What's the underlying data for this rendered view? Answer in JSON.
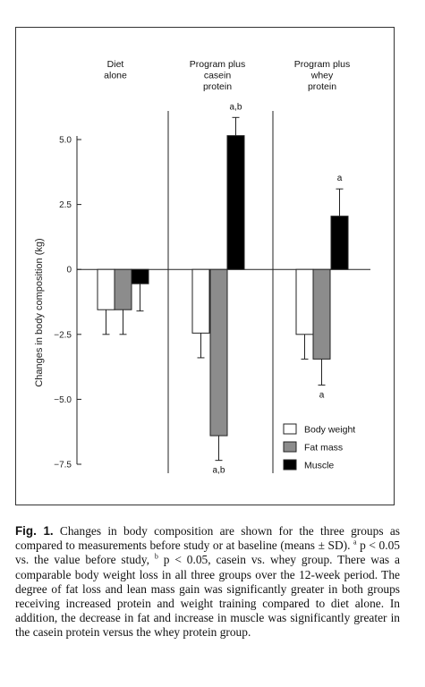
{
  "chart_data": {
    "type": "bar",
    "title": "",
    "ylabel": "Changes in body composition (kg)",
    "xlabel": "",
    "ylim": [
      -7.5,
      5.0
    ],
    "yticks": [
      5.0,
      2.5,
      0,
      -2.5,
      -5.0,
      -7.5
    ],
    "ytick_labels": [
      "5.0",
      "2.5",
      "0",
      "−2.5",
      "−5.0",
      "−7.5"
    ],
    "grid": false,
    "legend_position": "bottom-right",
    "groups": [
      {
        "label_lines": [
          "Diet",
          "alone"
        ]
      },
      {
        "label_lines": [
          "Program plus",
          "casein",
          "protein"
        ]
      },
      {
        "label_lines": [
          "Program plus",
          "whey",
          "protein"
        ]
      }
    ],
    "series": [
      {
        "name": "Body weight",
        "color": "#ffffff",
        "values": [
          -1.55,
          -2.45,
          -2.5
        ],
        "errors": [
          0.95,
          0.95,
          0.95
        ],
        "annotations": [
          "",
          "",
          ""
        ]
      },
      {
        "name": "Fat mass",
        "color": "#8c8c8c",
        "values": [
          -1.55,
          -6.4,
          -3.45
        ],
        "errors": [
          0.95,
          0.95,
          1.0
        ],
        "annotations": [
          "",
          "a,b",
          "a"
        ]
      },
      {
        "name": "Muscle",
        "color": "#000000",
        "values": [
          -0.55,
          5.15,
          2.05
        ],
        "errors": [
          1.05,
          0.7,
          1.05
        ],
        "annotations": [
          "",
          "a,b",
          "a"
        ]
      }
    ]
  },
  "caption": {
    "label": "Fig. 1.",
    "lines": [
      [
        {
          "t": " Changes in body composition are shown for the three groups"
        }
      ],
      [
        {
          "t": "as compared to measurements before study or at baseline (means ±"
        }
      ],
      [
        {
          "t": "SD). "
        },
        {
          "t": "a",
          "sup": true
        },
        {
          "t": " p < 0.05 vs. the value before study, "
        },
        {
          "t": "b",
          "sup": true
        },
        {
          "t": " p < 0.05, casein vs. whey"
        }
      ],
      [
        {
          "t": "group. There was a comparable body weight loss in all three groups"
        }
      ],
      [
        {
          "t": "over the 12-week period. The degree of fat loss and lean mass gain"
        }
      ],
      [
        {
          "t": "was significantly greater in both groups receiving increased protein"
        }
      ],
      [
        {
          "t": "and weight training compared to diet alone. In addition, the decrease"
        }
      ],
      [
        {
          "t": "in fat and increase in muscle was significantly greater in the casein"
        }
      ],
      [
        {
          "t": "protein versus the whey protein group."
        }
      ]
    ]
  }
}
